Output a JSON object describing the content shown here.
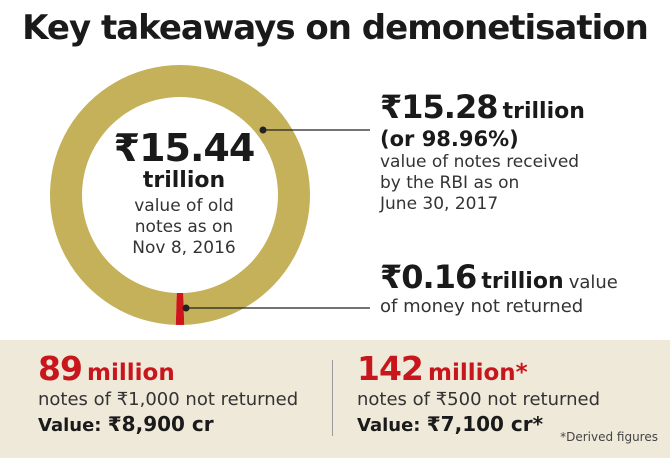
{
  "title": "Key takeaways on demonetisation",
  "center": {
    "amount": "₹15.44",
    "unit": "trillion",
    "desc_lines": [
      "value of old",
      "notes as on",
      "Nov 8, 2016"
    ]
  },
  "returned": {
    "amount": "₹15.28",
    "unit": "trillion",
    "percent": "(or 98.96%)",
    "desc_lines": [
      "value of notes received",
      "by the RBI as on",
      "June 30, 2017"
    ]
  },
  "not_returned": {
    "amount": "₹0.16",
    "unit": "trillion",
    "desc_inline": "value",
    "desc_line2": "of money not returned"
  },
  "stats": [
    {
      "number": "89",
      "unit": "million",
      "desc": "notes of ₹1,000 not returned",
      "value_label": "Value:",
      "value_amount": "₹8,900 cr"
    },
    {
      "number": "142",
      "unit": "million*",
      "desc": "notes of ₹500 not returned",
      "value_label": "Value:",
      "value_amount": "₹7,100 cr*"
    }
  ],
  "footnote": "*Derived figures",
  "colors": {
    "returned": "#c4b15a",
    "not_returned": "#d0141b",
    "panel": "#efe9da",
    "accent": "#c8161d"
  },
  "chart_data": {
    "type": "pie",
    "title": "Key takeaways on demonetisation",
    "total": 15.44,
    "unit": "₹ trillion",
    "slices": [
      {
        "label": "value of notes received by the RBI as on June 30, 2017",
        "value": 15.28
      },
      {
        "label": "value of money not returned",
        "value": 0.16
      }
    ]
  }
}
